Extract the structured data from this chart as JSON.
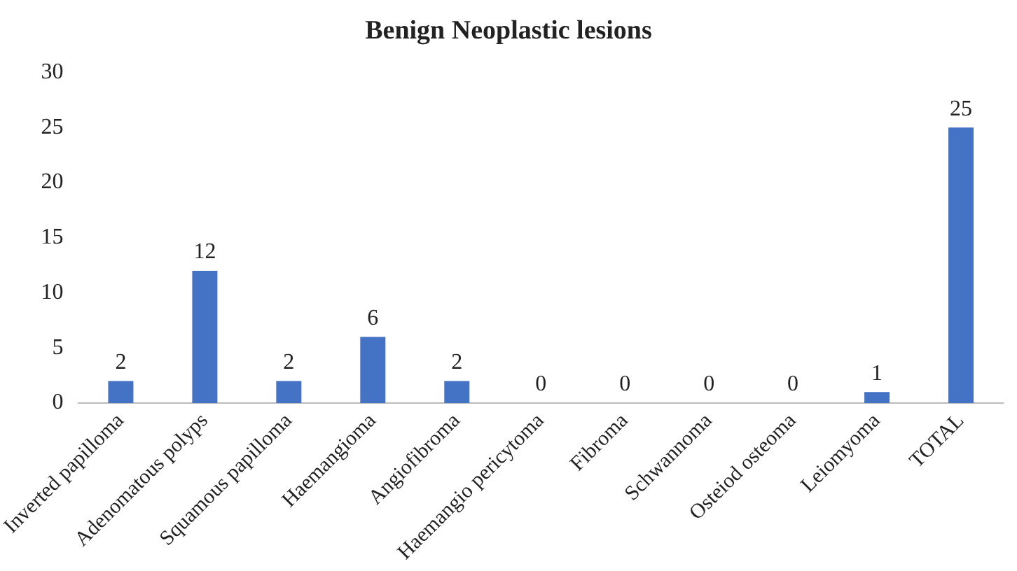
{
  "chart_data": {
    "type": "bar",
    "title": "Benign Neoplastic lesions",
    "categories": [
      "Inverted papilloma",
      "Adenomatous polyps",
      "Squamous papilloma",
      "Haemangioma",
      "Angiofibroma",
      "Haemangio pericytoma",
      "Fibroma",
      "Schwannoma",
      "Osteiod osteoma",
      "Leiomyoma",
      "TOTAL"
    ],
    "values": [
      2,
      12,
      2,
      6,
      2,
      0,
      0,
      0,
      0,
      1,
      25
    ],
    "color": "#4472c4",
    "ylim": [
      0,
      30
    ],
    "yticks": [
      0,
      5,
      10,
      15,
      20,
      25,
      30
    ],
    "grid": false,
    "legend": false,
    "data_labels": true
  }
}
